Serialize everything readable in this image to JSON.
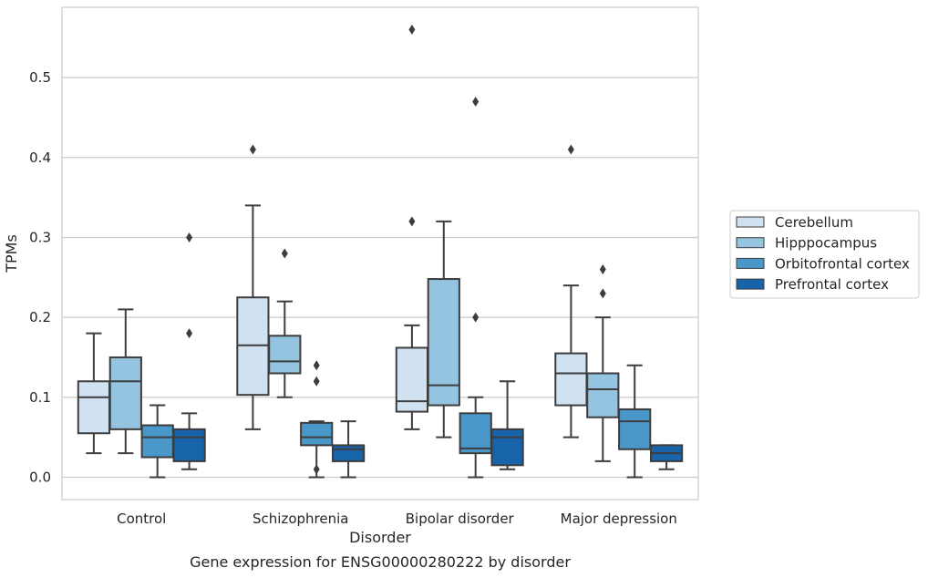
{
  "chart_data": {
    "type": "box",
    "caption": "Gene expression for ENSG00000280222 by disorder",
    "xlabel": "Disorder",
    "ylabel": "TPMs",
    "ylim": [
      -0.028,
      0.588
    ],
    "yticks": [
      "0.0",
      "0.1",
      "0.2",
      "0.3",
      "0.4",
      "0.5"
    ],
    "ytick_values": [
      0.0,
      0.1,
      0.2,
      0.3,
      0.4,
      0.5
    ],
    "grid": "horizontal",
    "legend_position": "right",
    "categories": [
      "Control",
      "Schizophrenia",
      "Bipolar disorder",
      "Major depression"
    ],
    "series": [
      {
        "name": "Cerebellum",
        "color": "#d0e1f2",
        "boxes": [
          {
            "whislo": 0.03,
            "q1": 0.055,
            "med": 0.1,
            "q3": 0.12,
            "whishi": 0.18,
            "fliers": []
          },
          {
            "whislo": 0.06,
            "q1": 0.103,
            "med": 0.165,
            "q3": 0.225,
            "whishi": 0.34,
            "fliers": [
              0.41
            ]
          },
          {
            "whislo": 0.06,
            "q1": 0.082,
            "med": 0.095,
            "q3": 0.162,
            "whishi": 0.19,
            "fliers": [
              0.32,
              0.56
            ]
          },
          {
            "whislo": 0.05,
            "q1": 0.09,
            "med": 0.13,
            "q3": 0.155,
            "whishi": 0.24,
            "fliers": [
              0.41
            ]
          }
        ]
      },
      {
        "name": "Hipppocampus",
        "color": "#94c4df",
        "boxes": [
          {
            "whislo": 0.03,
            "q1": 0.06,
            "med": 0.12,
            "q3": 0.15,
            "whishi": 0.21,
            "fliers": []
          },
          {
            "whislo": 0.1,
            "q1": 0.13,
            "med": 0.145,
            "q3": 0.177,
            "whishi": 0.22,
            "fliers": [
              0.28
            ]
          },
          {
            "whislo": 0.05,
            "q1": 0.09,
            "med": 0.115,
            "q3": 0.248,
            "whishi": 0.32,
            "fliers": []
          },
          {
            "whislo": 0.02,
            "q1": 0.075,
            "med": 0.11,
            "q3": 0.13,
            "whishi": 0.2,
            "fliers": [
              0.23,
              0.26
            ]
          }
        ]
      },
      {
        "name": "Orbitofrontal cortex",
        "color": "#4a98c9",
        "boxes": [
          {
            "whislo": 0.0,
            "q1": 0.025,
            "med": 0.05,
            "q3": 0.065,
            "whishi": 0.09,
            "fliers": []
          },
          {
            "whislo": 0.0,
            "q1": 0.04,
            "med": 0.05,
            "q3": 0.068,
            "whishi": 0.07,
            "fliers": [
              0.01,
              0.12,
              0.14
            ]
          },
          {
            "whislo": 0.0,
            "q1": 0.03,
            "med": 0.036,
            "q3": 0.08,
            "whishi": 0.1,
            "fliers": [
              0.2,
              0.47
            ]
          },
          {
            "whislo": 0.0,
            "q1": 0.035,
            "med": 0.07,
            "q3": 0.085,
            "whishi": 0.14,
            "fliers": []
          }
        ]
      },
      {
        "name": "Prefrontal cortex",
        "color": "#1764ab",
        "boxes": [
          {
            "whislo": 0.01,
            "q1": 0.02,
            "med": 0.05,
            "q3": 0.06,
            "whishi": 0.08,
            "fliers": [
              0.18,
              0.3
            ]
          },
          {
            "whislo": 0.0,
            "q1": 0.02,
            "med": 0.035,
            "q3": 0.04,
            "whishi": 0.07,
            "fliers": []
          },
          {
            "whislo": 0.01,
            "q1": 0.015,
            "med": 0.05,
            "q3": 0.06,
            "whishi": 0.12,
            "fliers": []
          },
          {
            "whislo": 0.01,
            "q1": 0.02,
            "med": 0.03,
            "q3": 0.04,
            "whishi": 0.04,
            "fliers": []
          }
        ]
      }
    ]
  }
}
